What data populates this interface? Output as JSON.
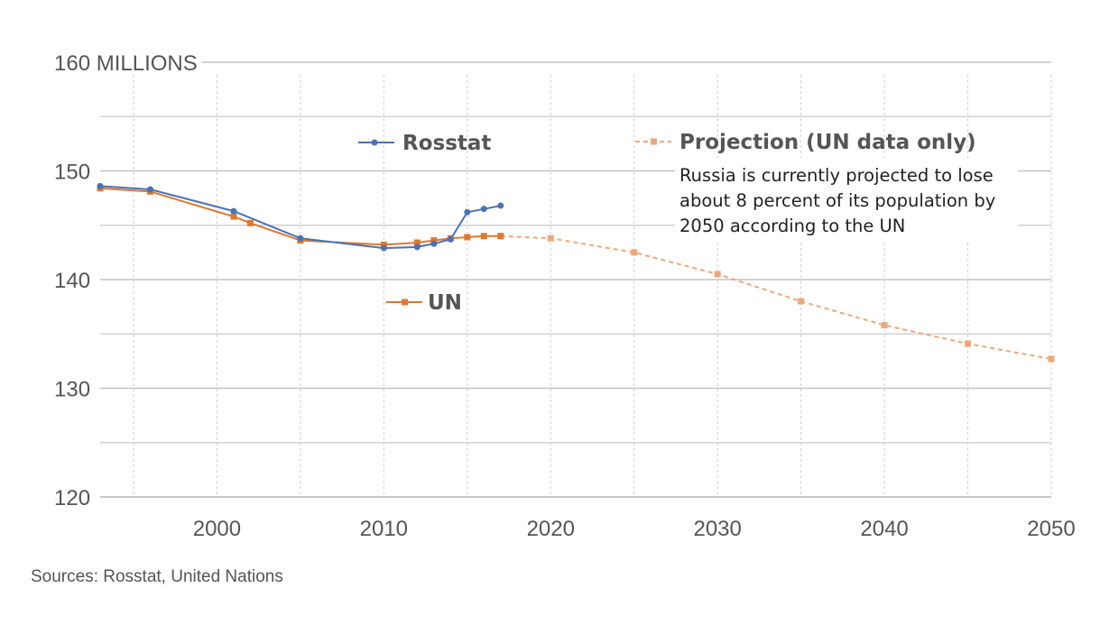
{
  "chart_data": {
    "type": "line",
    "title": "",
    "ylabel": "160 MILLIONS",
    "xlabel": "",
    "xlim": [
      1993,
      2050
    ],
    "ylim": [
      120,
      160
    ],
    "x_ticks": [
      2000,
      2010,
      2020,
      2030,
      2040,
      2050
    ],
    "y_ticks": [
      120,
      130,
      140,
      150,
      160
    ],
    "y_tick_labels": [
      "120",
      "130",
      "140",
      "150",
      "160 MILLIONS"
    ],
    "grid": true,
    "series": [
      {
        "name": "Rosstat",
        "color": "#4a72b5",
        "style": "solid",
        "marker": "circle",
        "x": [
          1993,
          1996,
          2001,
          2005,
          2010,
          2012,
          2013,
          2014,
          2015,
          2016,
          2017
        ],
        "values": [
          148.6,
          148.3,
          146.3,
          143.8,
          142.9,
          143.0,
          143.3,
          143.7,
          146.2,
          146.5,
          146.8
        ]
      },
      {
        "name": "UN",
        "color": "#e0782f",
        "style": "solid",
        "marker": "square",
        "x": [
          1993,
          1996,
          2001,
          2002,
          2005,
          2010,
          2012,
          2013,
          2014,
          2015,
          2016,
          2017
        ],
        "values": [
          148.4,
          148.1,
          145.8,
          145.2,
          143.6,
          143.2,
          143.4,
          143.6,
          143.8,
          143.9,
          144.0,
          144.0
        ]
      },
      {
        "name": "Projection (UN data only)",
        "color": "#eea77a",
        "style": "dashed",
        "marker": "square",
        "x": [
          2017,
          2020,
          2025,
          2030,
          2035,
          2040,
          2045,
          2050
        ],
        "values": [
          144.0,
          143.8,
          142.5,
          140.5,
          138.0,
          135.8,
          134.1,
          132.7
        ]
      }
    ],
    "legend": {
      "rosstat": "Rosstat",
      "un": "UN",
      "projection": "Projection (UN data only)"
    },
    "annotation": [
      "Russia is currently projected to lose",
      "about 8 percent of its population by",
      "2050 according to the UN"
    ]
  },
  "source": "Sources: Rosstat, United Nations"
}
